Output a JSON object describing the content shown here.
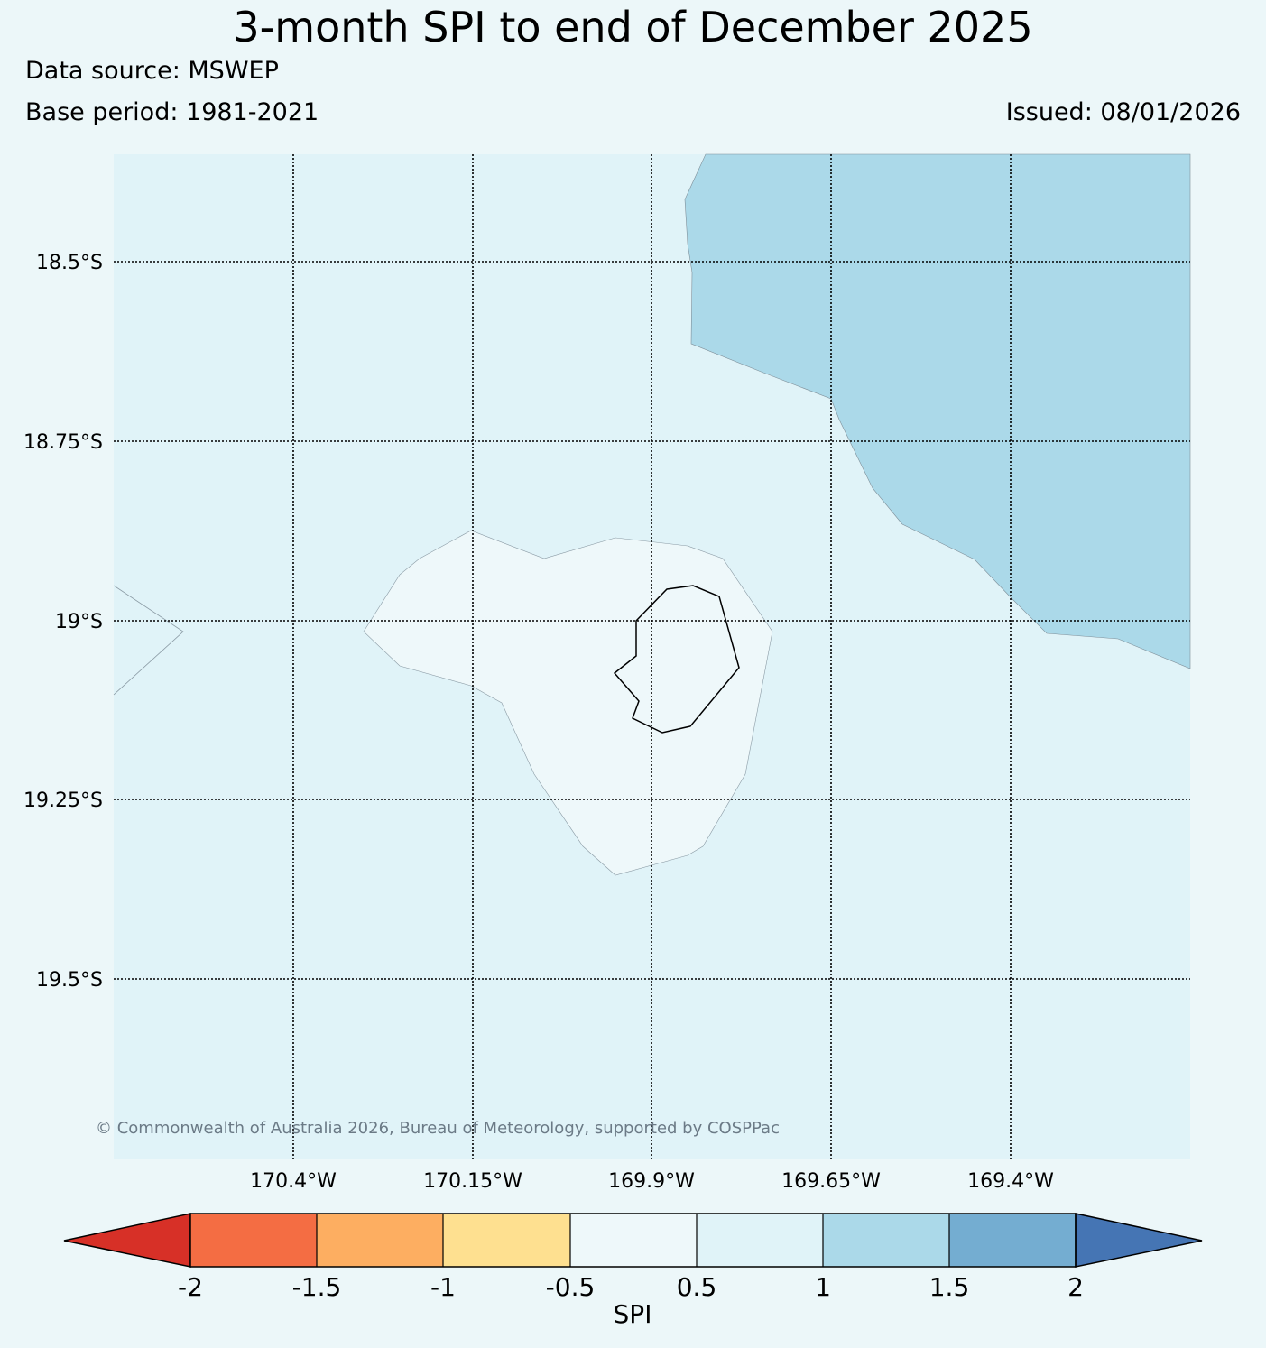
{
  "header": {
    "title": "3-month SPI to end of December 2025",
    "source": "Data source: MSWEP",
    "base_period": "Base period: 1981-2021",
    "issued": "Issued: 08/01/2026"
  },
  "map": {
    "background_class_color": "#e0f3f8",
    "wet_class_color": "#abd9e9",
    "near_normal_color": "#eef8fa",
    "latitude_labels": [
      "18.5°S",
      "18.75°S",
      "19°S",
      "19.25°S",
      "19.5°S"
    ],
    "longitude_labels": [
      "170.4°W",
      "170.15°W",
      "169.9°W",
      "169.65°W",
      "169.4°W"
    ],
    "copyright": "© Commonwealth of Australia 2026, Bureau of Meteorology, supported by COSPPac"
  },
  "colorbar": {
    "title": "SPI",
    "tick_labels": [
      "-2",
      "-1.5",
      "-1",
      "-0.5",
      "0.5",
      "1",
      "1.5",
      "2"
    ],
    "extend_low_color": "#d73027",
    "extend_high_color": "#4575b4",
    "colors": [
      "#f46d43",
      "#fdae61",
      "#fee090",
      "#eef8fa",
      "#e0f3f8",
      "#abd9e9",
      "#74add1"
    ]
  }
}
